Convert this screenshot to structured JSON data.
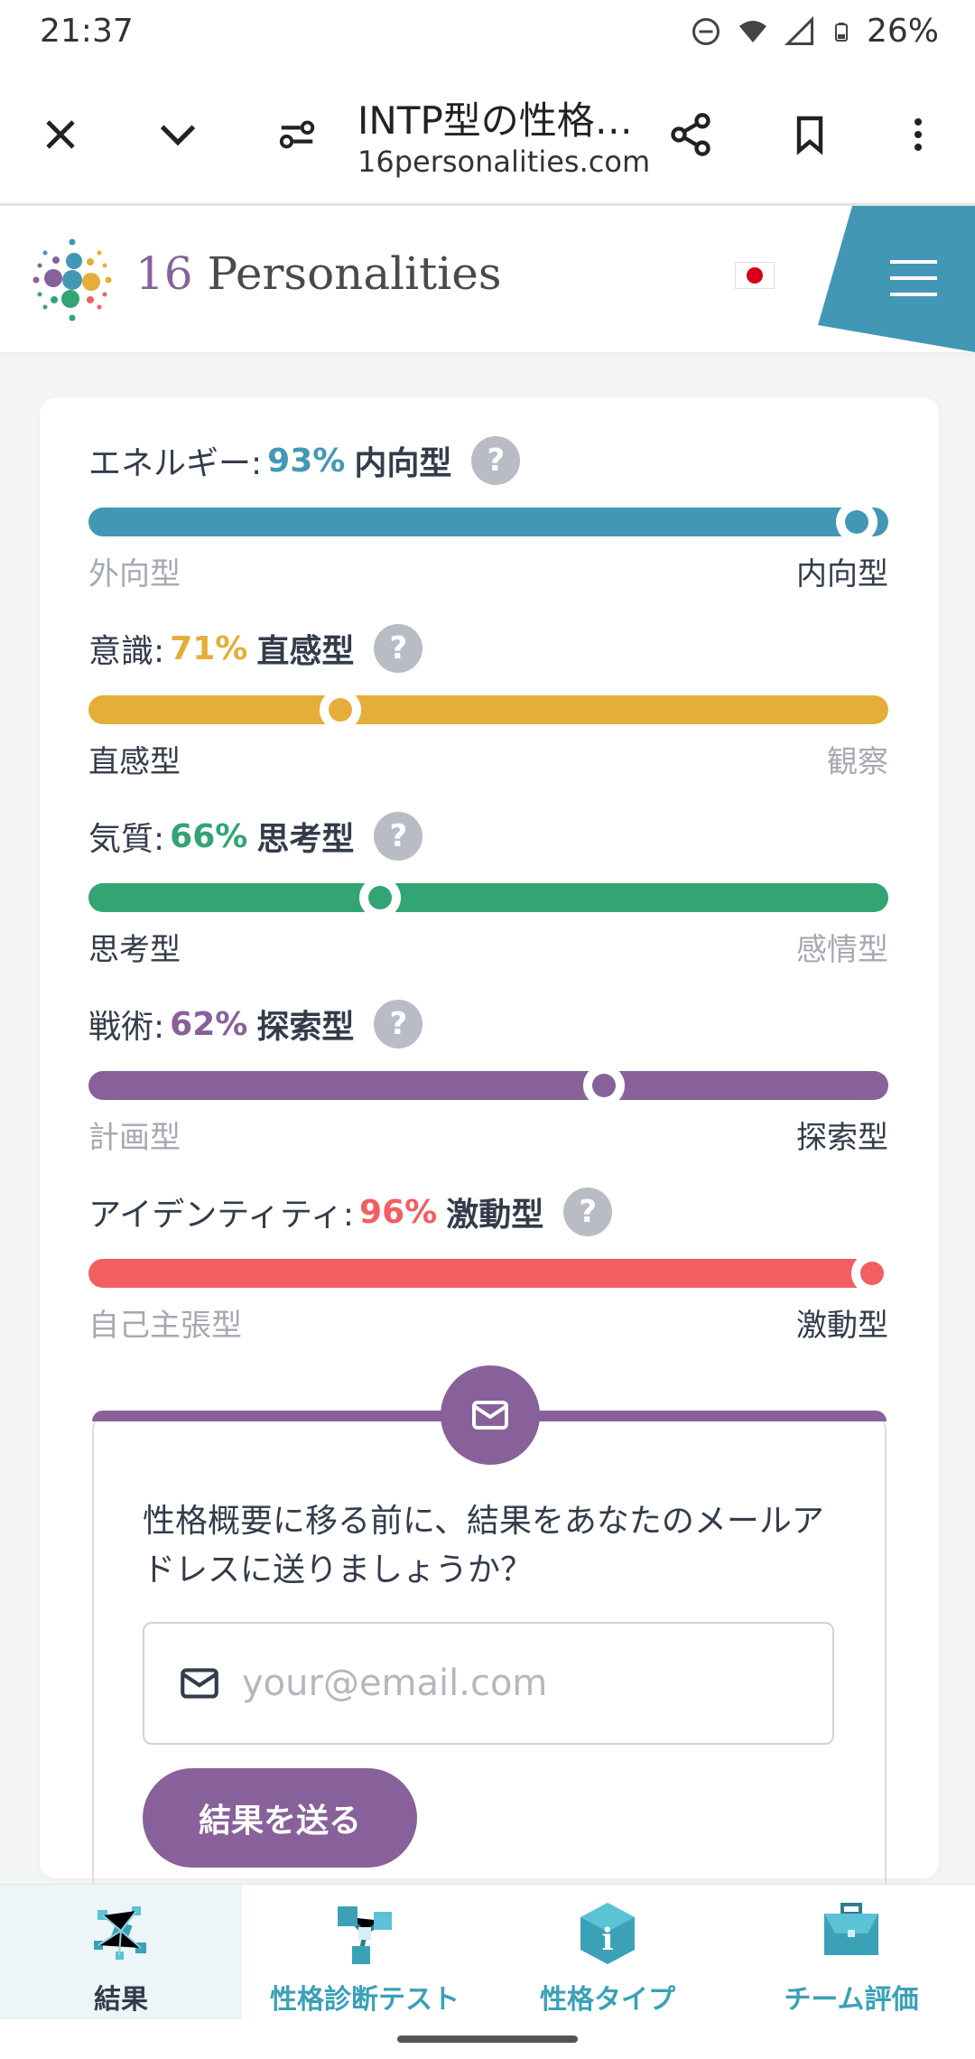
{
  "status_bar": {
    "time": "21:37",
    "battery": "26%",
    "icons": [
      "dnd-icon",
      "wifi-icon",
      "signal-icon",
      "battery-icon"
    ]
  },
  "browser": {
    "title": "INTP型の性格…",
    "url": "16personalities.com",
    "icons": [
      "close-icon",
      "chevron-down-icon",
      "site-settings-icon",
      "share-icon",
      "bookmark-icon",
      "more-vert-icon"
    ]
  },
  "site": {
    "logo_number": "16",
    "logo_word": " Personalities",
    "language_flag": "jp-flag-icon"
  },
  "traits": [
    {
      "label": "エネルギー:",
      "percent": "93%",
      "name": "内向型",
      "left": "外向型",
      "right": "内向型",
      "position": 0.96,
      "color": "#4298b4",
      "active_side": "right"
    },
    {
      "label": "意識:",
      "percent": "71%",
      "name": "直感型",
      "left": "直感型",
      "right": "観察",
      "position": 0.315,
      "color": "#e4ae3a",
      "active_side": "left"
    },
    {
      "label": "気質:",
      "percent": "66%",
      "name": "思考型",
      "left": "思考型",
      "right": "感情型",
      "position": 0.365,
      "color": "#33a474",
      "active_side": "left"
    },
    {
      "label": "戦術:",
      "percent": "62%",
      "name": "探索型",
      "left": "計画型",
      "right": "探索型",
      "position": 0.645,
      "color": "#88619a",
      "active_side": "right"
    },
    {
      "label": "アイデンティティ:",
      "percent": "96%",
      "name": "激動型",
      "left": "自己主張型",
      "right": "激動型",
      "position": 0.98,
      "color": "#f25e62",
      "active_side": "right"
    }
  ],
  "help_glyph": "?",
  "email": {
    "prompt": "性格概要に移る前に、結果をあなたのメールアドレスに送りましょうか？",
    "placeholder": "your@email.com",
    "button": "結果を送る",
    "accent": "#88619a"
  },
  "bottom_nav": [
    {
      "label": "結果",
      "icon": "results-cubes-icon",
      "active": true
    },
    {
      "label": "性格診断テスト",
      "icon": "test-molecule-icon",
      "active": false
    },
    {
      "label": "性格タイプ",
      "icon": "types-info-icon",
      "active": false
    },
    {
      "label": "チーム評価",
      "icon": "team-briefcase-icon",
      "active": false
    }
  ]
}
